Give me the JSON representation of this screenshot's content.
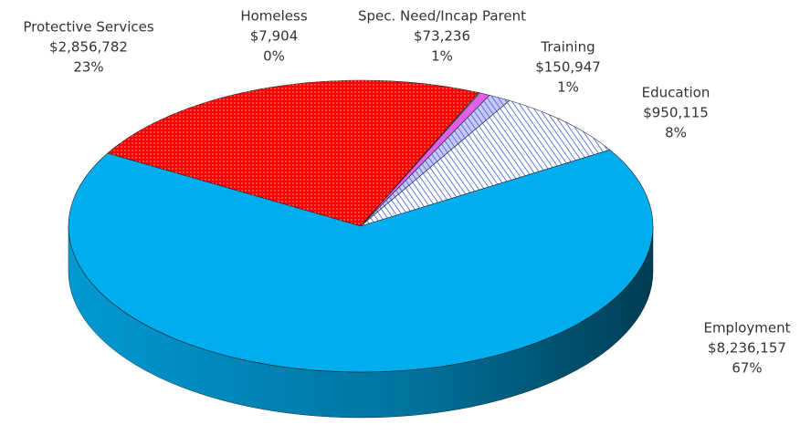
{
  "chart_data": {
    "type": "pie",
    "categories": [
      "Protective Services",
      "Homeless",
      "Spec. Need/Incap Parent",
      "Training",
      "Education",
      "Employment"
    ],
    "values": [
      2856782,
      7904,
      73236,
      150947,
      950115,
      8236157
    ],
    "value_labels": [
      "$2,856,782",
      "$7,904",
      "$73,236",
      "$150,947",
      "$950,115",
      "$8,236,157"
    ],
    "percent_labels": [
      "23%",
      "0%",
      "1%",
      "1%",
      "8%",
      "67%"
    ],
    "colors": [
      "#ff0000",
      "#7fe05a",
      "#e060e8",
      "#c8c8ff",
      "#ffffff",
      "#00aeef"
    ],
    "patterns": [
      "dots",
      "none",
      "none",
      "hatch",
      "hatch",
      "none"
    ]
  }
}
